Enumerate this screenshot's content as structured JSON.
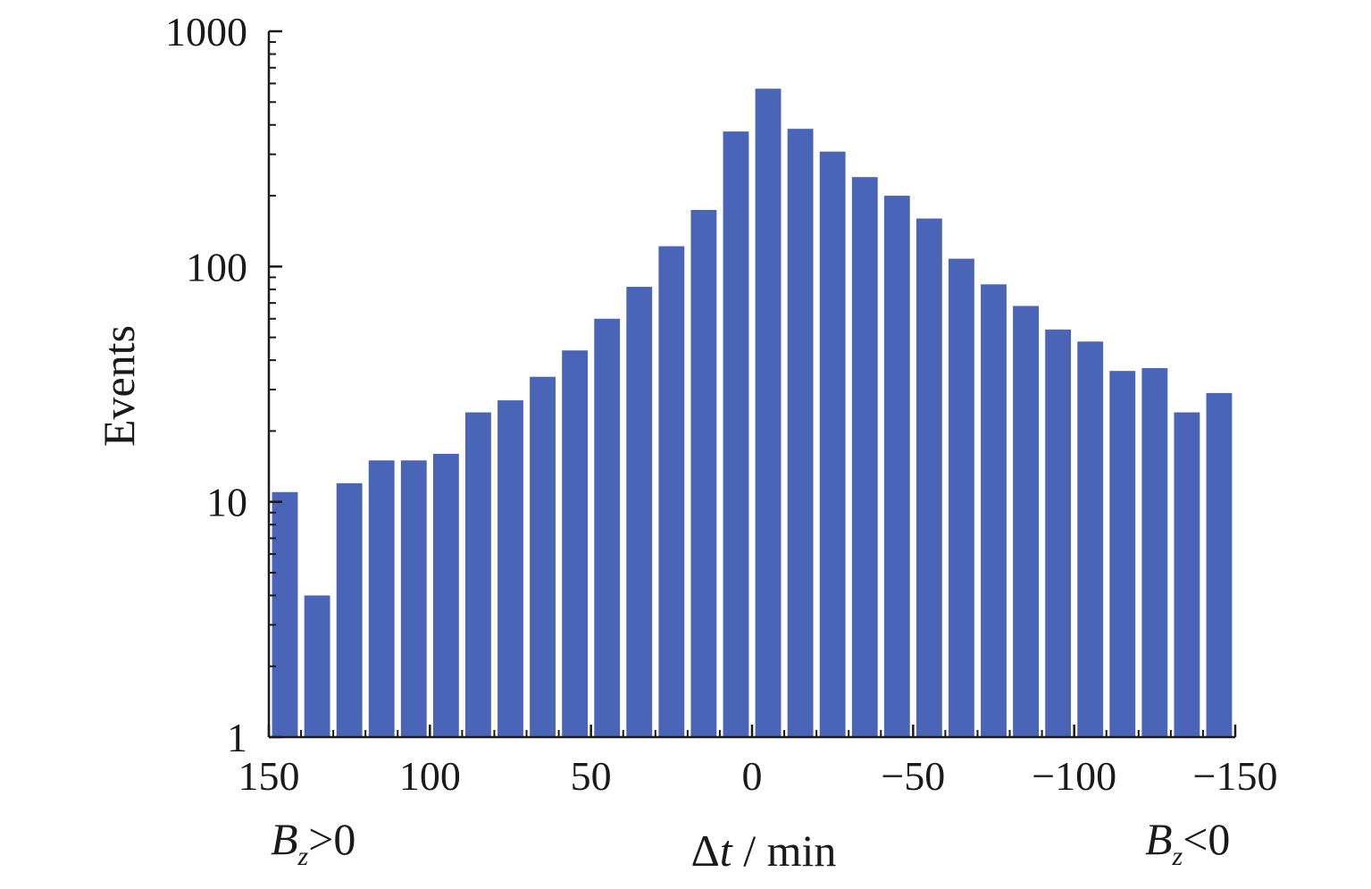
{
  "chart_data": {
    "type": "bar",
    "xlabel_prefix": "Δ",
    "xlabel_var": "t",
    "xlabel_suffix": " / min",
    "ylabel": "Events",
    "yscale": "log",
    "ylim": [
      1,
      1000
    ],
    "xlim": [
      150,
      -150
    ],
    "x_reversed": true,
    "bar_width": 8,
    "x_ticks": [
      {
        "value": 150,
        "label": "150"
      },
      {
        "value": 100,
        "label": "100"
      },
      {
        "value": 50,
        "label": "50"
      },
      {
        "value": 0,
        "label": "0"
      },
      {
        "value": -50,
        "label": "−50"
      },
      {
        "value": -100,
        "label": "−100"
      },
      {
        "value": -150,
        "label": "−150"
      }
    ],
    "y_ticks": [
      {
        "value": 1,
        "label": "1"
      },
      {
        "value": 10,
        "label": "10"
      },
      {
        "value": 100,
        "label": "100"
      },
      {
        "value": 1000,
        "label": "1000"
      }
    ],
    "annotations": {
      "left": {
        "var": "B",
        "sub": "z",
        "text": ">0"
      },
      "right": {
        "var": "B",
        "sub": "z",
        "text": "<0"
      }
    },
    "bar_color": "#4A64B8",
    "grid": false,
    "x": [
      145,
      135,
      125,
      115,
      105,
      95,
      85,
      75,
      65,
      55,
      45,
      35,
      25,
      15,
      5,
      -5,
      -15,
      -25,
      -35,
      -45,
      -55,
      -65,
      -75,
      -85,
      -95,
      -105,
      -115,
      -125,
      -135,
      -145
    ],
    "values": [
      11,
      4,
      12,
      15,
      15,
      16,
      24,
      27,
      34,
      44,
      60,
      82,
      122,
      174,
      375,
      570,
      385,
      308,
      240,
      200,
      160,
      108,
      84,
      68,
      54,
      48,
      36,
      37,
      24,
      29
    ]
  }
}
